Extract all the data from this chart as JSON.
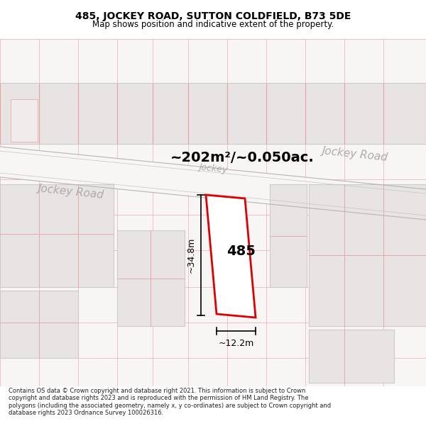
{
  "title_line1": "485, JOCKEY ROAD, SUTTON COLDFIELD, B73 5DE",
  "title_line2": "Map shows position and indicative extent of the property.",
  "footer_text": "Contains OS data © Crown copyright and database right 2021. This information is subject to Crown copyright and database rights 2023 and is reproduced with the permission of HM Land Registry. The polygons (including the associated geometry, namely x, y co-ordinates) are subject to Crown copyright and database rights 2023 Ordnance Survey 100026316.",
  "area_label": "~202m²/~0.050ac.",
  "width_label": "~12.2m",
  "height_label": "~34.8m",
  "number_label": "485",
  "road_label_left": "Jockey Road",
  "road_label_right": "Jockey Road",
  "road_label_center": "Jockey",
  "bg_color": "#f5f0f0",
  "map_bg": "#f8f5f5",
  "grid_line_color": "#e8a0a0",
  "plot_outline_color": "#dd0000",
  "dimension_line_color": "#000000",
  "building_fill": "#e8e4e4",
  "building_edge": "#d0cacc",
  "road_fill": "#f8f5f5",
  "road_stripe_color": "#d0cccc"
}
